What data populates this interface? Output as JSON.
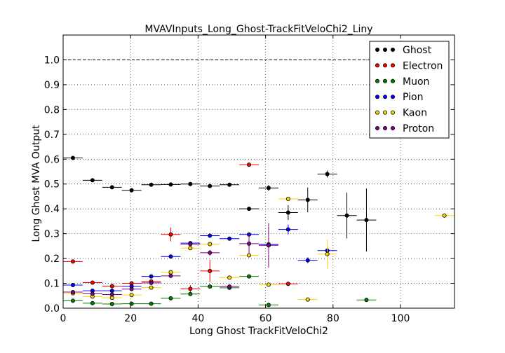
{
  "chart_data": {
    "type": "scatter",
    "title": "MVAVInputs_Long_Ghost-TrackFitVeloChi2_Liny",
    "xlabel": "Long Ghost TrackFitVeloChi2",
    "ylabel": "Long Ghost MVA Output",
    "xlim": [
      0,
      116
    ],
    "ylim": [
      0,
      1.1
    ],
    "x_ticks": [
      "0",
      "20",
      "40",
      "60",
      "80",
      "100"
    ],
    "y_ticks": [
      "0.0",
      "0.1",
      "0.2",
      "0.3",
      "0.4",
      "0.5",
      "0.6",
      "0.7",
      "0.8",
      "0.9",
      "1.0"
    ],
    "grid": true,
    "legend_position": "top-right",
    "reference_line_y": 1.0,
    "series": [
      {
        "name": "Ghost",
        "color": "#000000",
        "points": [
          {
            "x": 2.9,
            "y": 0.605,
            "xerr": 2.9,
            "yerr": 0.004
          },
          {
            "x": 8.7,
            "y": 0.515,
            "xerr": 2.9,
            "yerr": 0.004
          },
          {
            "x": 14.5,
            "y": 0.487,
            "xerr": 2.9,
            "yerr": 0.004
          },
          {
            "x": 20.3,
            "y": 0.475,
            "xerr": 2.9,
            "yerr": 0.005
          },
          {
            "x": 26.1,
            "y": 0.497,
            "xerr": 2.9,
            "yerr": 0.005
          },
          {
            "x": 31.9,
            "y": 0.498,
            "xerr": 2.9,
            "yerr": 0.005
          },
          {
            "x": 37.7,
            "y": 0.5,
            "xerr": 2.9,
            "yerr": 0.006
          },
          {
            "x": 43.5,
            "y": 0.492,
            "xerr": 2.9,
            "yerr": 0.006
          },
          {
            "x": 49.3,
            "y": 0.497,
            "xerr": 2.9,
            "yerr": 0.006
          },
          {
            "x": 55.1,
            "y": 0.4,
            "xerr": 2.9,
            "yerr": 0.008
          },
          {
            "x": 60.9,
            "y": 0.484,
            "xerr": 2.9,
            "yerr": 0.012
          },
          {
            "x": 66.7,
            "y": 0.385,
            "xerr": 2.9,
            "yerr": 0.03
          },
          {
            "x": 72.5,
            "y": 0.436,
            "xerr": 2.9,
            "yerr": 0.05
          },
          {
            "x": 78.3,
            "y": 0.54,
            "xerr": 2.9,
            "yerr": 0.014
          },
          {
            "x": 84.1,
            "y": 0.373,
            "xerr": 2.9,
            "yerr": 0.092
          },
          {
            "x": 89.9,
            "y": 0.355,
            "xerr": 2.9,
            "yerr": 0.127
          }
        ]
      },
      {
        "name": "Electron",
        "color": "#ff0000",
        "points": [
          {
            "x": 2.9,
            "y": 0.188,
            "xerr": 2.9,
            "yerr": 0.004
          },
          {
            "x": 8.7,
            "y": 0.103,
            "xerr": 2.9,
            "yerr": 0.004
          },
          {
            "x": 14.5,
            "y": 0.089,
            "xerr": 2.9,
            "yerr": 0.004
          },
          {
            "x": 20.3,
            "y": 0.1,
            "xerr": 2.9,
            "yerr": 0.005
          },
          {
            "x": 26.1,
            "y": 0.108,
            "xerr": 2.9,
            "yerr": 0.006
          },
          {
            "x": 31.9,
            "y": 0.297,
            "xerr": 2.9,
            "yerr": 0.028
          },
          {
            "x": 37.7,
            "y": 0.078,
            "xerr": 2.9,
            "yerr": 0.015
          },
          {
            "x": 43.5,
            "y": 0.15,
            "xerr": 2.9,
            "yerr": 0.045
          },
          {
            "x": 55.1,
            "y": 0.578,
            "xerr": 2.9,
            "yerr": 0.005
          },
          {
            "x": 66.7,
            "y": 0.098,
            "xerr": 2.9,
            "yerr": 0.004
          }
        ]
      },
      {
        "name": "Muon",
        "color": "#008000",
        "points": [
          {
            "x": 2.9,
            "y": 0.03,
            "xerr": 2.9,
            "yerr": 0.003
          },
          {
            "x": 8.7,
            "y": 0.02,
            "xerr": 2.9,
            "yerr": 0.003
          },
          {
            "x": 14.5,
            "y": 0.017,
            "xerr": 2.9,
            "yerr": 0.003
          },
          {
            "x": 20.3,
            "y": 0.018,
            "xerr": 2.9,
            "yerr": 0.003
          },
          {
            "x": 26.1,
            "y": 0.018,
            "xerr": 2.9,
            "yerr": 0.003
          },
          {
            "x": 31.9,
            "y": 0.04,
            "xerr": 2.9,
            "yerr": 0.004
          },
          {
            "x": 37.7,
            "y": 0.057,
            "xerr": 2.9,
            "yerr": 0.005
          },
          {
            "x": 43.5,
            "y": 0.087,
            "xerr": 2.9,
            "yerr": 0.005
          },
          {
            "x": 49.3,
            "y": 0.082,
            "xerr": 2.9,
            "yerr": 0.005
          },
          {
            "x": 55.1,
            "y": 0.128,
            "xerr": 2.9,
            "yerr": 0.004
          },
          {
            "x": 60.9,
            "y": 0.013,
            "xerr": 2.9,
            "yerr": 0.004
          },
          {
            "x": 89.9,
            "y": 0.033,
            "xerr": 2.9,
            "yerr": 0.003
          }
        ]
      },
      {
        "name": "Pion",
        "color": "#0000ff",
        "points": [
          {
            "x": 2.9,
            "y": 0.093,
            "xerr": 2.9,
            "yerr": 0.003
          },
          {
            "x": 8.7,
            "y": 0.07,
            "xerr": 2.9,
            "yerr": 0.003
          },
          {
            "x": 14.5,
            "y": 0.07,
            "xerr": 2.9,
            "yerr": 0.003
          },
          {
            "x": 20.3,
            "y": 0.088,
            "xerr": 2.9,
            "yerr": 0.004
          },
          {
            "x": 26.1,
            "y": 0.128,
            "xerr": 2.9,
            "yerr": 0.004
          },
          {
            "x": 31.9,
            "y": 0.208,
            "xerr": 2.9,
            "yerr": 0.004
          },
          {
            "x": 37.7,
            "y": 0.262,
            "xerr": 2.9,
            "yerr": 0.004
          },
          {
            "x": 43.5,
            "y": 0.292,
            "xerr": 2.9,
            "yerr": 0.004
          },
          {
            "x": 49.3,
            "y": 0.28,
            "xerr": 2.9,
            "yerr": 0.004
          },
          {
            "x": 55.1,
            "y": 0.297,
            "xerr": 2.9,
            "yerr": 0.005
          },
          {
            "x": 60.9,
            "y": 0.257,
            "xerr": 2.9,
            "yerr": 0.008
          },
          {
            "x": 66.7,
            "y": 0.317,
            "xerr": 2.9,
            "yerr": 0.02
          },
          {
            "x": 72.5,
            "y": 0.193,
            "xerr": 2.9,
            "yerr": 0.012
          },
          {
            "x": 78.3,
            "y": 0.232,
            "xerr": 2.9,
            "yerr": 0.01
          }
        ]
      },
      {
        "name": "Kaon",
        "color": "#ffd700",
        "points": [
          {
            "x": 2.9,
            "y": 0.06,
            "xerr": 2.9,
            "yerr": 0.004
          },
          {
            "x": 8.7,
            "y": 0.047,
            "xerr": 2.9,
            "yerr": 0.004
          },
          {
            "x": 14.5,
            "y": 0.042,
            "xerr": 2.9,
            "yerr": 0.004
          },
          {
            "x": 20.3,
            "y": 0.053,
            "xerr": 2.9,
            "yerr": 0.004
          },
          {
            "x": 26.1,
            "y": 0.083,
            "xerr": 2.9,
            "yerr": 0.005
          },
          {
            "x": 31.9,
            "y": 0.145,
            "xerr": 2.9,
            "yerr": 0.006
          },
          {
            "x": 37.7,
            "y": 0.242,
            "xerr": 2.9,
            "yerr": 0.007
          },
          {
            "x": 43.5,
            "y": 0.258,
            "xerr": 2.9,
            "yerr": 0.007
          },
          {
            "x": 49.3,
            "y": 0.123,
            "xerr": 2.9,
            "yerr": 0.006
          },
          {
            "x": 55.1,
            "y": 0.213,
            "xerr": 2.9,
            "yerr": 0.008
          },
          {
            "x": 60.9,
            "y": 0.095,
            "xerr": 2.9,
            "yerr": 0.008
          },
          {
            "x": 66.7,
            "y": 0.44,
            "xerr": 2.9,
            "yerr": 0.005
          },
          {
            "x": 72.5,
            "y": 0.035,
            "xerr": 2.9,
            "yerr": 0.004
          },
          {
            "x": 78.3,
            "y": 0.218,
            "xerr": 2.9,
            "yerr": 0.058
          },
          {
            "x": 113.0,
            "y": 0.373,
            "xerr": 2.9,
            "yerr": 0.004
          }
        ]
      },
      {
        "name": "Proton",
        "color": "#800080",
        "points": [
          {
            "x": 2.9,
            "y": 0.065,
            "xerr": 2.9,
            "yerr": 0.004
          },
          {
            "x": 8.7,
            "y": 0.058,
            "xerr": 2.9,
            "yerr": 0.004
          },
          {
            "x": 14.5,
            "y": 0.055,
            "xerr": 2.9,
            "yerr": 0.004
          },
          {
            "x": 20.3,
            "y": 0.077,
            "xerr": 2.9,
            "yerr": 0.005
          },
          {
            "x": 26.1,
            "y": 0.102,
            "xerr": 2.9,
            "yerr": 0.006
          },
          {
            "x": 31.9,
            "y": 0.13,
            "xerr": 2.9,
            "yerr": 0.007
          },
          {
            "x": 37.7,
            "y": 0.258,
            "xerr": 2.9,
            "yerr": 0.01
          },
          {
            "x": 43.5,
            "y": 0.223,
            "xerr": 2.9,
            "yerr": 0.012
          },
          {
            "x": 49.3,
            "y": 0.087,
            "xerr": 2.9,
            "yerr": 0.006
          },
          {
            "x": 55.1,
            "y": 0.26,
            "xerr": 2.9,
            "yerr": 0.04
          },
          {
            "x": 60.9,
            "y": 0.253,
            "xerr": 2.9,
            "yerr": 0.09
          }
        ]
      }
    ]
  }
}
